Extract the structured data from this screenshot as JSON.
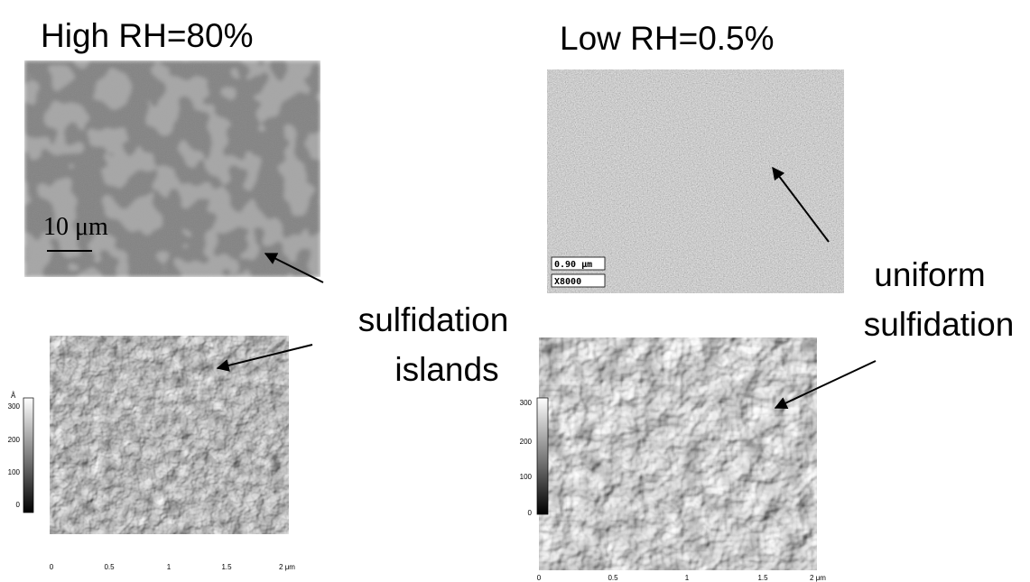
{
  "panels": {
    "high_rh": {
      "title": "High RH=80%",
      "scale_bar": "10 μm",
      "afm_colorbar": {
        "unit": "Å",
        "ticks": [
          "300",
          "200",
          "100",
          "0"
        ]
      },
      "afm_xaxis": [
        "0",
        "0.5",
        "1",
        "1.5",
        "2 μm"
      ]
    },
    "low_rh": {
      "title": "Low RH=0.5%",
      "sem_labels": [
        "0.90 μm",
        "X8000"
      ],
      "afm_colorbar": {
        "ticks": [
          "300",
          "200",
          "100",
          "0"
        ]
      },
      "afm_xaxis": [
        "0",
        "0.5",
        "1",
        "1.5",
        "2 μm"
      ]
    }
  },
  "annotations": {
    "islands": [
      "sulfidation",
      "islands"
    ],
    "uniform": [
      "uniform",
      "sulfidation"
    ]
  }
}
